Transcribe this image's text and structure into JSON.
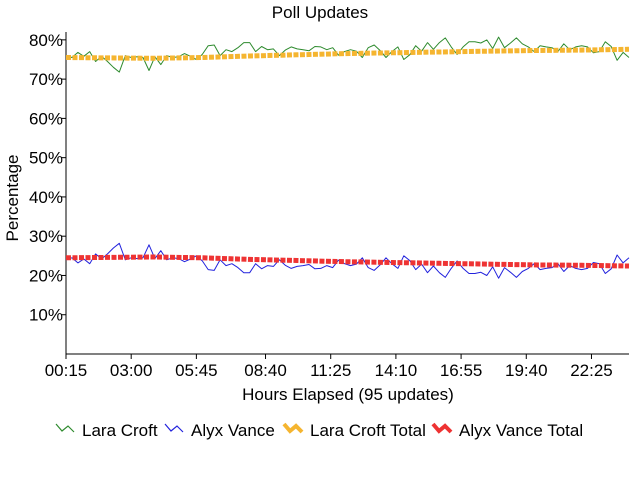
{
  "chart_data": {
    "type": "line",
    "title": "Poll Updates",
    "xlabel": "Hours Elapsed (95 updates)",
    "ylabel": "Percentage",
    "ylim": [
      0,
      82
    ],
    "yticks": [
      10,
      20,
      30,
      40,
      50,
      60,
      70,
      80
    ],
    "ytick_labels": [
      "10%",
      "20%",
      "30%",
      "40%",
      "50%",
      "60%",
      "70%",
      "80%"
    ],
    "xlim_hours": [
      0.25,
      24.0
    ],
    "xticks_hours": [
      0.25,
      3.0,
      5.75,
      8.6667,
      11.4167,
      14.1667,
      16.9167,
      19.6667,
      22.4167
    ],
    "xtick_labels": [
      "00:15",
      "03:00",
      "05:45",
      "08:40",
      "11:25",
      "14:10",
      "16:55",
      "19:40",
      "22:25"
    ],
    "grid": false,
    "legend_position": "bottom",
    "series": [
      {
        "name": "Lara Croft",
        "color": "#2e8b2e",
        "style": "thin",
        "x_hours": [
          0.25,
          0.5,
          0.75,
          1.0,
          1.25,
          1.5,
          1.75,
          2.0,
          2.25,
          2.5,
          2.75,
          3.0,
          3.25,
          3.5,
          3.75,
          4.0,
          4.25,
          4.5,
          4.75,
          5.0,
          5.25,
          5.5,
          5.75,
          6.0,
          6.25,
          6.5,
          6.75,
          7.0,
          7.25,
          7.5,
          7.75,
          8.0,
          8.25,
          8.5,
          8.75,
          9.0,
          9.25,
          9.5,
          9.75,
          10.0,
          10.25,
          10.5,
          10.75,
          11.0,
          11.25,
          11.5,
          11.75,
          12.0,
          12.25,
          12.5,
          12.75,
          13.0,
          13.25,
          13.5,
          13.75,
          14.0,
          14.25,
          14.5,
          14.75,
          15.0,
          15.25,
          15.5,
          15.75,
          16.0,
          16.25,
          16.5,
          16.75,
          17.0,
          17.25,
          17.5,
          17.75,
          18.0,
          18.25,
          18.5,
          18.75,
          19.0,
          19.25,
          19.5,
          19.75,
          20.0,
          20.25,
          20.5,
          20.75,
          21.0,
          21.25,
          21.5,
          21.75,
          22.0,
          22.25,
          22.5,
          22.75,
          23.0,
          23.25,
          23.5,
          23.75,
          24.0
        ],
        "values": [
          76,
          75.5,
          76.8,
          75.8,
          77,
          74.5,
          75.8,
          74.5,
          73,
          71.8,
          76,
          75.5,
          75.7,
          75.5,
          72.2,
          75.7,
          73.7,
          76,
          75.5,
          75.7,
          76.5,
          75.8,
          75,
          76.3,
          78.5,
          78.7,
          76,
          77.5,
          77,
          78,
          79.3,
          79.3,
          77,
          78.3,
          77.5,
          77.7,
          76,
          77.4,
          78.2,
          77.7,
          77.5,
          77.2,
          78.3,
          78.2,
          77.5,
          78,
          76.1,
          77,
          77.5,
          77.1,
          75.5,
          78,
          78.7,
          77.3,
          75.5,
          77,
          78.2,
          75,
          76.2,
          78.5,
          77.1,
          79.3,
          77.6,
          79.3,
          80.5,
          78.2,
          76.3,
          78.2,
          79.5,
          79.5,
          79.2,
          80,
          77.8,
          80.7,
          78,
          79.2,
          80.5,
          79,
          78.2,
          77,
          78.5,
          78.2,
          78,
          77,
          79,
          77.5,
          78.2,
          78.5,
          78.2,
          76.7,
          77,
          79.5,
          78.3,
          74.8,
          76.8,
          75.5
        ]
      },
      {
        "name": "Alyx Vance",
        "color": "#2222dd",
        "style": "thin",
        "x_hours": [
          0.25,
          0.5,
          0.75,
          1.0,
          1.25,
          1.5,
          1.75,
          2.0,
          2.25,
          2.5,
          2.75,
          3.0,
          3.25,
          3.5,
          3.75,
          4.0,
          4.25,
          4.5,
          4.75,
          5.0,
          5.25,
          5.5,
          5.75,
          6.0,
          6.25,
          6.5,
          6.75,
          7.0,
          7.25,
          7.5,
          7.75,
          8.0,
          8.25,
          8.5,
          8.75,
          9.0,
          9.25,
          9.5,
          9.75,
          10.0,
          10.25,
          10.5,
          10.75,
          11.0,
          11.25,
          11.5,
          11.75,
          12.0,
          12.25,
          12.5,
          12.75,
          13.0,
          13.25,
          13.5,
          13.75,
          14.0,
          14.25,
          14.5,
          14.75,
          15.0,
          15.25,
          15.5,
          15.75,
          16.0,
          16.25,
          16.5,
          16.75,
          17.0,
          17.25,
          17.5,
          17.75,
          18.0,
          18.25,
          18.5,
          18.75,
          19.0,
          19.25,
          19.5,
          19.75,
          20.0,
          20.25,
          20.5,
          20.75,
          21.0,
          21.25,
          21.5,
          21.75,
          22.0,
          22.25,
          22.5,
          22.75,
          23.0,
          23.25,
          23.5,
          23.75,
          24.0
        ],
        "values": [
          24,
          24.5,
          23.2,
          24.2,
          23,
          25.5,
          24.2,
          25.5,
          27,
          28.2,
          24,
          24.5,
          24.3,
          24.5,
          27.8,
          24.3,
          26.3,
          24,
          24.5,
          24.3,
          23.5,
          24.2,
          25,
          23.7,
          21.5,
          21.3,
          24,
          22.5,
          23,
          22,
          20.7,
          20.7,
          23,
          21.7,
          22.5,
          22.3,
          24,
          22.6,
          21.8,
          22.3,
          22.5,
          22.8,
          21.7,
          21.8,
          22.5,
          22,
          23.9,
          23,
          22.5,
          22.9,
          24.5,
          22,
          21.3,
          22.7,
          24.5,
          23,
          21.8,
          25,
          23.8,
          21.5,
          22.9,
          20.7,
          22.4,
          20.7,
          19.5,
          21.8,
          23.7,
          21.8,
          20.5,
          20.5,
          20.8,
          20,
          22.2,
          19.3,
          22,
          20.8,
          19.5,
          21,
          21.8,
          23,
          21.5,
          21.8,
          22,
          23,
          21,
          22.5,
          21.8,
          21.5,
          21.8,
          23.3,
          23,
          20.5,
          21.7,
          25.2,
          23.2,
          24.5
        ]
      },
      {
        "name": "Lara Croft Total",
        "color": "#f5b530",
        "style": "thick",
        "x_hours": [
          0.25,
          2.0,
          4.0,
          6.0,
          8.0,
          10.0,
          12.0,
          14.0,
          16.0,
          18.0,
          20.0,
          22.0,
          24.0
        ],
        "values": [
          75.5,
          75.4,
          75.3,
          75.5,
          75.9,
          76.2,
          76.5,
          76.7,
          76.9,
          77.1,
          77.3,
          77.4,
          77.6
        ]
      },
      {
        "name": "Alyx Vance Total",
        "color": "#ee3333",
        "style": "thick",
        "x_hours": [
          0.25,
          2.0,
          4.0,
          6.0,
          8.0,
          10.0,
          12.0,
          14.0,
          16.0,
          18.0,
          20.0,
          22.0,
          24.0
        ],
        "values": [
          24.5,
          24.6,
          24.7,
          24.5,
          24.1,
          23.8,
          23.5,
          23.3,
          23.1,
          22.9,
          22.7,
          22.6,
          22.4
        ]
      }
    ]
  }
}
